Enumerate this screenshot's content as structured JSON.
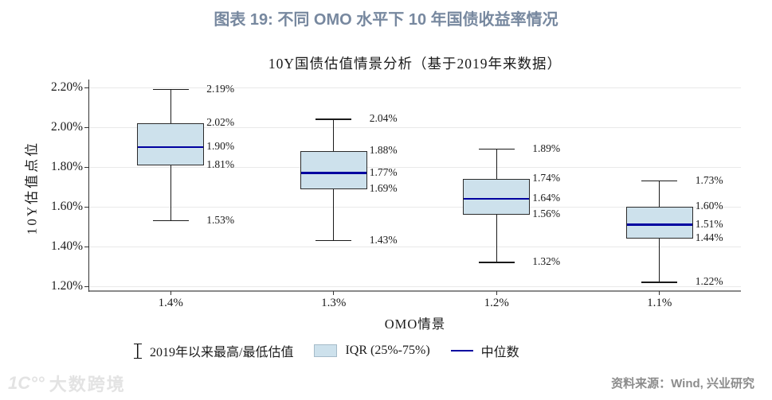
{
  "header": {
    "title": "图表 19: 不同 OMO 水平下 10 年国债收益率情况"
  },
  "chart_data": {
    "type": "boxplot",
    "title": "10Y国债估值情景分析（基于2019年来数据）",
    "xlabel": "OMO情景",
    "ylabel": "10Y估值点位",
    "categories": [
      "1.4%",
      "1.3%",
      "1.2%",
      "1.1%"
    ],
    "ylim": [
      1.2,
      2.2
    ],
    "grid": "horizontal",
    "legend_position": "bottom",
    "y_ticks": [
      {
        "value": 2.2,
        "label": "2.20%"
      },
      {
        "value": 2.0,
        "label": "2.00%"
      },
      {
        "value": 1.8,
        "label": "1.80%"
      },
      {
        "value": 1.6,
        "label": "1.60%"
      },
      {
        "value": 1.4,
        "label": "1.40%"
      },
      {
        "value": 1.2,
        "label": "1.20%"
      }
    ],
    "boxes": [
      {
        "category": "1.4%",
        "max": 2.19,
        "q3": 2.02,
        "median": 1.9,
        "q1": 1.81,
        "min": 1.53,
        "labels": {
          "max": "2.19%",
          "q3": "2.02%",
          "median": "1.90%",
          "q1": "1.81%",
          "min": "1.53%"
        }
      },
      {
        "category": "1.3%",
        "max": 2.04,
        "q3": 1.88,
        "median": 1.77,
        "q1": 1.69,
        "min": 1.43,
        "labels": {
          "max": "2.04%",
          "q3": "1.88%",
          "median": "1.77%",
          "q1": "1.69%",
          "min": "1.43%"
        }
      },
      {
        "category": "1.2%",
        "max": 1.89,
        "q3": 1.74,
        "median": 1.64,
        "q1": 1.56,
        "min": 1.32,
        "labels": {
          "max": "1.89%",
          "q3": "1.74%",
          "median": "1.64%",
          "q1": "1.56%",
          "min": "1.32%"
        }
      },
      {
        "category": "1.1%",
        "max": 1.73,
        "q3": 1.6,
        "median": 1.51,
        "q1": 1.44,
        "min": 1.22,
        "labels": {
          "max": "1.73%",
          "q3": "1.60%",
          "median": "1.51%",
          "q1": "1.44%",
          "min": "1.22%"
        }
      }
    ],
    "colors": {
      "title": "#77889f",
      "text": "#1a1a1a",
      "box_fill": "#cde1ec",
      "box_border": "#2b2b2b",
      "median": "#0000a0",
      "whisker": "#1a1a1a",
      "grid": "#e9e9e9",
      "axis_left": "#333333",
      "axis_bottom": "#8a8a8a",
      "source": "#8c8c8c",
      "watermark": "#e3e3e3"
    }
  },
  "legend": {
    "items": [
      {
        "symbol": "whisker",
        "label": "2019年以来最高/最低估值"
      },
      {
        "symbol": "iqr-box",
        "label": "IQR (25%-75%)"
      },
      {
        "symbol": "median-line",
        "label": "中位数"
      }
    ]
  },
  "footer": {
    "source": "资料来源：Wind, 兴业研究",
    "watermark_logo": "1C°°",
    "watermark_text": "大数跨境"
  }
}
